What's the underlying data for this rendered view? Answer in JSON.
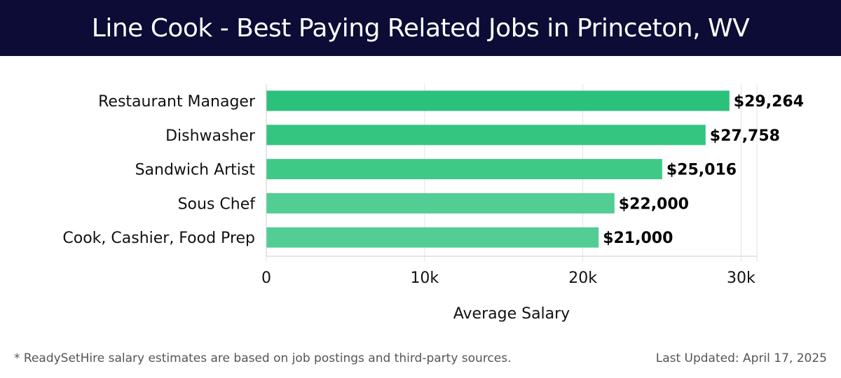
{
  "header": {
    "title": "Line Cook - Best Paying Related Jobs in Princeton, WV"
  },
  "footer": {
    "note": "* ReadySetHire salary estimates are based on job postings and third-party sources.",
    "updated": "Last Updated: April 17, 2025"
  },
  "colors": {
    "header_bg": "#0c0c36",
    "bar_colors": [
      "#2cc17a",
      "#34c580",
      "#3fc987",
      "#52cd93",
      "#52cd93"
    ],
    "grid": "#e3e3e3"
  },
  "chart_data": {
    "type": "bar",
    "orientation": "horizontal",
    "title": "Line Cook - Best Paying Related Jobs in Princeton, WV",
    "categories": [
      "Restaurant Manager",
      "Dishwasher",
      "Sandwich Artist",
      "Sous Chef",
      "Cook, Cashier, Food Prep"
    ],
    "values": [
      29264,
      27758,
      25016,
      22000,
      21000
    ],
    "value_labels": [
      "$29,264",
      "$27,758",
      "$25,016",
      "$22,000",
      "$21,000"
    ],
    "xlabel": "Average Salary",
    "ylabel": "",
    "xlim": [
      0,
      31000
    ],
    "xticks": [
      0,
      10000,
      20000,
      30000
    ],
    "xtick_labels": [
      "0",
      "10k",
      "20k",
      "30k"
    ],
    "grid": true,
    "legend": "none"
  }
}
